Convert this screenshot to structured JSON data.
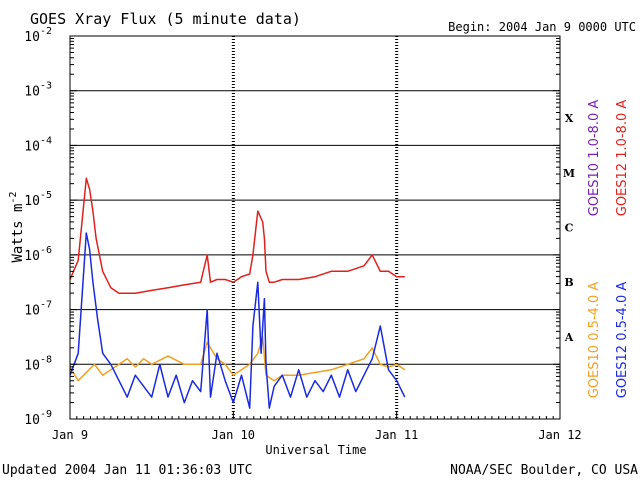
{
  "chart_data": {
    "type": "line",
    "title": "GOES Xray Flux (5 minute data)",
    "begin_label": "Begin:  2004 Jan 9 0000 UTC",
    "xlabel": "Universal Time",
    "ylabel": "Watts m",
    "ylabel_exponent": "-2",
    "y_scale": "log",
    "ylim": [
      1e-09,
      0.01
    ],
    "xlim_days": [
      0,
      3
    ],
    "x_ticks": [
      {
        "day": 0,
        "label": "Jan 9"
      },
      {
        "day": 1,
        "label": "Jan 10"
      },
      {
        "day": 2,
        "label": "Jan 11"
      },
      {
        "day": 3,
        "label": "Jan 12"
      }
    ],
    "y_ticks": [
      {
        "exp": -9,
        "base": "10",
        "exp_label": "-9"
      },
      {
        "exp": -8,
        "base": "10",
        "exp_label": "-8"
      },
      {
        "exp": -7,
        "base": "10",
        "exp_label": "-7"
      },
      {
        "exp": -6,
        "base": "10",
        "exp_label": "-6"
      },
      {
        "exp": -5,
        "base": "10",
        "exp_label": "-5"
      },
      {
        "exp": -4,
        "base": "10",
        "exp_label": "-4"
      },
      {
        "exp": -3,
        "base": "10",
        "exp_label": "-3"
      },
      {
        "exp": -2,
        "base": "10",
        "exp_label": "-2"
      }
    ],
    "flare_classes": [
      {
        "label": "X",
        "exp": -3.5
      },
      {
        "label": "M",
        "exp": -4.5
      },
      {
        "label": "C",
        "exp": -5.5
      },
      {
        "label": "B",
        "exp": -6.5
      },
      {
        "label": "A",
        "exp": -7.5
      }
    ],
    "legend_right": [
      {
        "name": "GOES12 1.0-8.0 A",
        "color": "#e0201c"
      },
      {
        "name": "GOES10 1.0-8.0 A",
        "color": "#7a20b0"
      }
    ],
    "legend_left": [
      {
        "name": "GOES12 0.5-4.0 A",
        "color": "#1a2ae0"
      },
      {
        "name": "GOES10 0.5-4.0 A",
        "color": "#f0a020"
      }
    ],
    "series": [
      {
        "name": "GOES12 1.0-8.0 A",
        "color": "#e0201c",
        "x": [
          0.0,
          0.05,
          0.1,
          0.12,
          0.14,
          0.16,
          0.2,
          0.25,
          0.3,
          0.35,
          0.4,
          0.5,
          0.6,
          0.7,
          0.8,
          0.84,
          0.86,
          0.9,
          0.95,
          1.0,
          1.05,
          1.1,
          1.12,
          1.15,
          1.18,
          1.19,
          1.2,
          1.22,
          1.25,
          1.3,
          1.4,
          1.5,
          1.6,
          1.7,
          1.8,
          1.85,
          1.9,
          1.95,
          2.0,
          2.05
        ],
        "y_exp": [
          -6.45,
          -6.1,
          -4.6,
          -4.8,
          -5.2,
          -5.7,
          -6.3,
          -6.6,
          -6.7,
          -6.7,
          -6.7,
          -6.65,
          -6.6,
          -6.55,
          -6.5,
          -6.0,
          -6.5,
          -6.45,
          -6.45,
          -6.5,
          -6.4,
          -6.35,
          -6.0,
          -5.2,
          -5.4,
          -5.7,
          -6.3,
          -6.5,
          -6.5,
          -6.45,
          -6.45,
          -6.4,
          -6.3,
          -6.3,
          -6.2,
          -6.0,
          -6.3,
          -6.3,
          -6.4,
          -6.4
        ]
      },
      {
        "name": "GOES10 0.5-4.0 A",
        "color": "#f0a020",
        "x": [
          0.0,
          0.05,
          0.15,
          0.2,
          0.25,
          0.3,
          0.35,
          0.4,
          0.45,
          0.5,
          0.6,
          0.7,
          0.8,
          0.84,
          0.9,
          0.95,
          1.0,
          1.05,
          1.1,
          1.15,
          1.18,
          1.2,
          1.25,
          1.3,
          1.4,
          1.5,
          1.6,
          1.7,
          1.8,
          1.85,
          1.9,
          1.95,
          2.0,
          2.05
        ],
        "y_exp": [
          -8.05,
          -8.3,
          -8.0,
          -8.2,
          -8.1,
          -8.0,
          -7.9,
          -8.05,
          -7.9,
          -8.0,
          -7.85,
          -8.0,
          -8.0,
          -7.6,
          -7.9,
          -8.0,
          -8.2,
          -8.1,
          -8.0,
          -7.8,
          -7.5,
          -8.2,
          -8.3,
          -8.2,
          -8.2,
          -8.15,
          -8.1,
          -8.0,
          -7.9,
          -7.7,
          -8.0,
          -8.05,
          -8.0,
          -8.1
        ]
      },
      {
        "name": "GOES12 0.5-4.0 A",
        "color": "#1a2ae0",
        "x": [
          0.0,
          0.05,
          0.1,
          0.12,
          0.14,
          0.17,
          0.2,
          0.25,
          0.3,
          0.35,
          0.4,
          0.45,
          0.5,
          0.55,
          0.6,
          0.65,
          0.7,
          0.75,
          0.8,
          0.84,
          0.86,
          0.9,
          0.95,
          1.0,
          1.05,
          1.1,
          1.12,
          1.15,
          1.17,
          1.19,
          1.2,
          1.22,
          1.25,
          1.3,
          1.35,
          1.4,
          1.45,
          1.5,
          1.55,
          1.6,
          1.65,
          1.7,
          1.75,
          1.8,
          1.85,
          1.9,
          1.95,
          2.0,
          2.05
        ],
        "y_exp": [
          -8.2,
          -7.8,
          -5.6,
          -5.9,
          -6.5,
          -7.2,
          -7.8,
          -8.0,
          -8.3,
          -8.6,
          -8.2,
          -8.4,
          -8.6,
          -8.0,
          -8.6,
          -8.2,
          -8.7,
          -8.3,
          -8.5,
          -7.0,
          -8.6,
          -7.8,
          -8.3,
          -8.7,
          -8.2,
          -8.8,
          -7.3,
          -6.5,
          -7.8,
          -6.8,
          -8.0,
          -8.8,
          -8.4,
          -8.2,
          -8.6,
          -8.1,
          -8.6,
          -8.3,
          -8.5,
          -8.2,
          -8.6,
          -8.1,
          -8.5,
          -8.2,
          -7.9,
          -7.3,
          -8.1,
          -8.3,
          -8.6
        ]
      }
    ]
  },
  "footer": {
    "updated": "Updated 2004 Jan 11 01:36:03 UTC",
    "credit": "NOAA/SEC Boulder, CO USA"
  }
}
